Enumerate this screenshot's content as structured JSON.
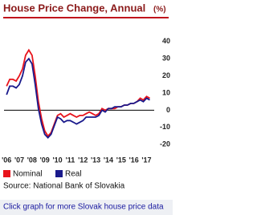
{
  "chart_data": {
    "type": "line",
    "title": "House Price Change, Annual",
    "subtitle": "(%)",
    "x": [
      2006,
      2006.25,
      2006.5,
      2006.75,
      2007,
      2007.25,
      2007.5,
      2007.75,
      2008,
      2008.25,
      2008.5,
      2008.75,
      2009,
      2009.25,
      2009.5,
      2009.75,
      2010,
      2010.25,
      2010.5,
      2010.75,
      2011,
      2011.25,
      2011.5,
      2011.75,
      2012,
      2012.25,
      2012.5,
      2012.75,
      2013,
      2013.25,
      2013.5,
      2013.75,
      2014,
      2014.25,
      2014.5,
      2014.75,
      2015,
      2015.25,
      2015.5,
      2015.75,
      2016,
      2016.25,
      2016.5,
      2016.75,
      2017,
      2017.25
    ],
    "series": [
      {
        "name": "Nominal",
        "color": "#e8141c",
        "values": [
          14,
          18,
          18,
          17,
          20,
          24,
          32,
          35,
          32,
          20,
          5,
          -5,
          -12,
          -15,
          -13,
          -8,
          -3,
          -2,
          -4,
          -3,
          -2,
          -3,
          -4,
          -3,
          -3,
          -2,
          -1,
          -2,
          -3,
          -2,
          1,
          0,
          1,
          1,
          1,
          2,
          2,
          3,
          3,
          4,
          4,
          5,
          7,
          6,
          8,
          7
        ]
      },
      {
        "name": "Real",
        "color": "#1a1a8c",
        "values": [
          9,
          14,
          14,
          13,
          15,
          20,
          28,
          30,
          27,
          15,
          1,
          -8,
          -14,
          -16,
          -14,
          -9,
          -4,
          -5,
          -7,
          -6,
          -6,
          -7,
          -8,
          -7,
          -6,
          -4,
          -4,
          -4,
          -4,
          -3,
          0,
          -1,
          1,
          1,
          2,
          2,
          2,
          3,
          3,
          4,
          4,
          5,
          6,
          5,
          7,
          6
        ]
      }
    ],
    "xlim": [
      2005.8,
      2017.6
    ],
    "xticks": [
      {
        "value": 2006,
        "label": "'06"
      },
      {
        "value": 2007,
        "label": "'07"
      },
      {
        "value": 2008,
        "label": "'08"
      },
      {
        "value": 2009,
        "label": "'09"
      },
      {
        "value": 2010,
        "label": "'10"
      },
      {
        "value": 2011,
        "label": "'11"
      },
      {
        "value": 2012,
        "label": "'12"
      },
      {
        "value": 2013,
        "label": "'13"
      },
      {
        "value": 2014,
        "label": "'14"
      },
      {
        "value": 2015,
        "label": "'15"
      },
      {
        "value": 2016,
        "label": "'16"
      },
      {
        "value": 2017,
        "label": "'17"
      }
    ],
    "ylim": [
      -25,
      45
    ],
    "yticks": [
      -20,
      -10,
      0,
      10,
      20,
      30,
      40
    ],
    "grid": false,
    "source": "Source: National Bank of Slovakia",
    "link": "Click graph for more Slovak house price data"
  }
}
